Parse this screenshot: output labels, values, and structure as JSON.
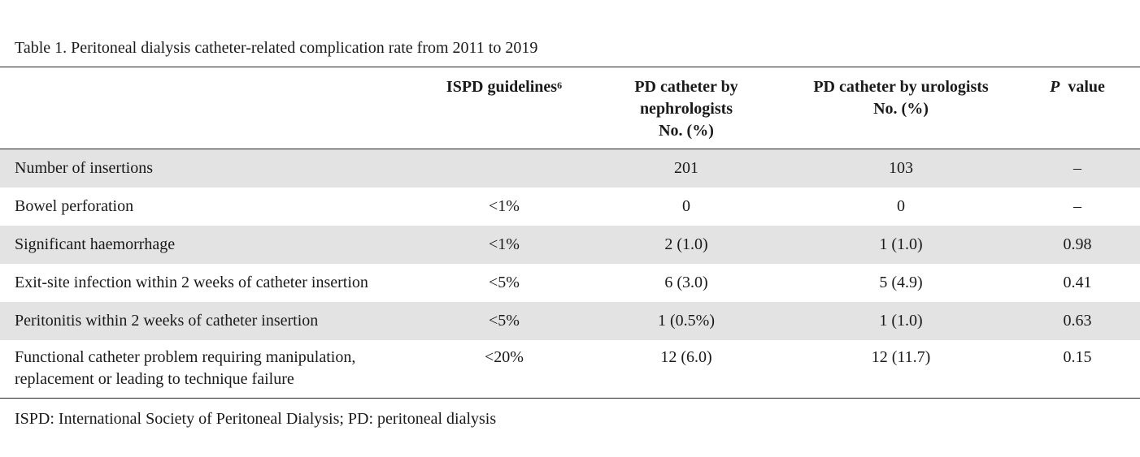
{
  "caption": "Table 1. Peritoneal dialysis catheter-related complication rate from 2011 to 2019",
  "header": {
    "col1": "",
    "col2": "ISPD guidelines",
    "col2_sup": "6",
    "col3": "PD catheter by\nnephrologists\nNo. (%)",
    "col4": "PD catheter by urologists\nNo. (%)",
    "col5_italic": "P",
    "col5_rest": "  value"
  },
  "rows": [
    {
      "label": "Number of insertions",
      "guideline": "",
      "nephrologists": "201",
      "urologists": "103",
      "p": "–"
    },
    {
      "label": "Bowel perforation",
      "guideline": "<1%",
      "nephrologists": "0",
      "urologists": "0",
      "p": "–"
    },
    {
      "label": "Significant haemorrhage",
      "guideline": "<1%",
      "nephrologists": "2 (1.0)",
      "urologists": "1 (1.0)",
      "p": "0.98"
    },
    {
      "label": "Exit-site infection within 2 weeks of catheter insertion",
      "guideline": "<5%",
      "nephrologists": "6 (3.0)",
      "urologists": "5 (4.9)",
      "p": "0.41"
    },
    {
      "label": "Peritonitis within 2 weeks of catheter insertion",
      "guideline": "<5%",
      "nephrologists": "1 (0.5%)",
      "urologists": "1 (1.0)",
      "p": "0.63"
    },
    {
      "label": "Functional catheter problem requiring manipulation,\nreplacement or leading to technique failure",
      "guideline": "<20%",
      "nephrologists": "12 (6.0)",
      "urologists": "12 (11.7)",
      "p": "0.15"
    }
  ],
  "footnote": "ISPD: International Society of Peritoneal Dialysis; PD: peritoneal dialysis",
  "colors": {
    "shaded_row": "#e3e3e3",
    "rule": "#222222"
  }
}
